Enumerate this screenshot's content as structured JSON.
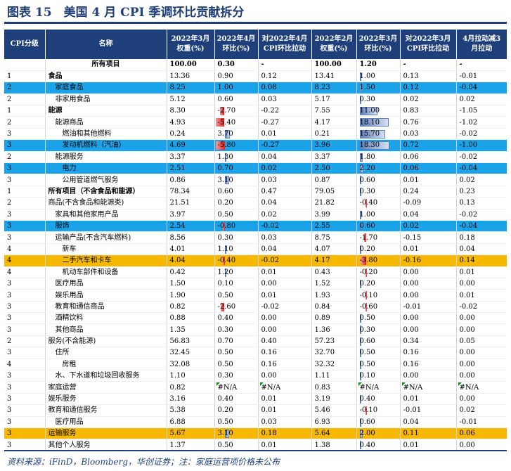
{
  "title": "图表 15　美国 4 月 CPI 季调环比贡献拆分",
  "colors": {
    "header_bg": "#1f3f7a",
    "highlight_blue": "#1aa3e8",
    "highlight_orange": "#f6b800",
    "negative_bar": "#e82020",
    "positive_bar": "#5f7fb8"
  },
  "headers": {
    "c0": "CPI分级",
    "c1": "名称",
    "c2a": "2022年3月",
    "c2b": "权重(%)",
    "c3a": "2022年4月",
    "c3b": "环比(%)",
    "c4a": "对2022年4月",
    "c4b": "CPI环比拉动",
    "c5a": "2022年2月",
    "c5b": "权重(%)",
    "c6a": "2022年3月",
    "c6b": "环比(%)",
    "c7a": "对2022年3月",
    "c7b": "CPI环比拉动",
    "c8a": "4月拉动减3",
    "c8b": "月拉动"
  },
  "rows": [
    {
      "lvl": "",
      "name": "所有项目",
      "w3": "100.00",
      "apr": "0.30",
      "capr": "-",
      "w2": "100.00",
      "mar": "1.20",
      "cmar": "-",
      "diff": "-",
      "style": "total"
    },
    {
      "lvl": "1",
      "name": "食品",
      "w3": "13.36",
      "apr": "0.90",
      "capr": "0.12",
      "w2": "13.41",
      "mar": "1.00",
      "cmar": "0.13",
      "diff": "-0.01",
      "style": "bold"
    },
    {
      "lvl": "2",
      "name": "家庭食品",
      "w3": "8.25",
      "apr": "1.00",
      "capr": "0.08",
      "w2": "8.23",
      "mar": "1.50",
      "cmar": "0.12",
      "diff": "-0.04",
      "style": "blue"
    },
    {
      "lvl": "2",
      "name": "非家用食品",
      "w3": "5.12",
      "apr": "0.60",
      "capr": "0.03",
      "w2": "5.17",
      "mar": "0.30",
      "cmar": "0.02",
      "diff": "0.02",
      "style": ""
    },
    {
      "lvl": "1",
      "name": "能源",
      "w3": "8.30",
      "apr": "-2.70",
      "capr": "-0.22",
      "w2": "7.55",
      "mar": "11.00",
      "cmar": "0.83",
      "diff": "-1.05",
      "style": "bold"
    },
    {
      "lvl": "2",
      "name": "能源商品",
      "w3": "4.93",
      "apr": "-5.40",
      "capr": "-0.27",
      "w2": "4.17",
      "mar": "18.10",
      "cmar": "0.76",
      "diff": "-1.02",
      "style": ""
    },
    {
      "lvl": "3",
      "name": "燃油和其他燃料",
      "w3": "0.24",
      "apr": "3.70",
      "capr": "0.01",
      "w2": "0.21",
      "mar": "15.70",
      "cmar": "0.03",
      "diff": "-0.02",
      "style": ""
    },
    {
      "lvl": "3",
      "name": "发动机燃料（汽油）",
      "w3": "4.69",
      "apr": "-5.80",
      "capr": "-0.27",
      "w2": "3.96",
      "mar": "18.30",
      "cmar": "0.72",
      "diff": "-1.00",
      "style": "blue"
    },
    {
      "lvl": "2",
      "name": "能源服务",
      "w3": "3.37",
      "apr": "1.30",
      "capr": "0.04",
      "w2": "3.37",
      "mar": "1.80",
      "cmar": "0.06",
      "diff": "-0.02",
      "style": ""
    },
    {
      "lvl": "3",
      "name": "电力",
      "w3": "2.51",
      "apr": "0.70",
      "capr": "0.02",
      "w2": "2.50",
      "mar": "2.20",
      "cmar": "0.06",
      "diff": "-0.04",
      "style": "blue"
    },
    {
      "lvl": "3",
      "name": "公用管道燃气服务",
      "w3": "0.86",
      "apr": "3.10",
      "capr": "0.03",
      "w2": "0.87",
      "mar": "0.60",
      "cmar": "0.01",
      "diff": "0.02",
      "style": ""
    },
    {
      "lvl": "1",
      "name": "所有项目（不含食品和能源）",
      "w3": "78.34",
      "apr": "0.60",
      "capr": "0.47",
      "w2": "79.05",
      "mar": "0.30",
      "cmar": "0.24",
      "diff": "0.23",
      "style": "bold"
    },
    {
      "lvl": "2",
      "name": "商品(不含食品和能源类)",
      "w3": "21.51",
      "apr": "0.20",
      "capr": "0.04",
      "w2": "21.82",
      "mar": "-0.40",
      "cmar": "-0.09",
      "diff": "0.13",
      "style": ""
    },
    {
      "lvl": "3",
      "name": "家具和其他家用产品",
      "w3": "3.97",
      "apr": "0.50",
      "capr": "0.02",
      "w2": "3.99",
      "mar": "1.00",
      "cmar": "0.04",
      "diff": "-0.02",
      "style": ""
    },
    {
      "lvl": "3",
      "name": "服饰",
      "w3": "2.54",
      "apr": "-0.80",
      "capr": "-0.02",
      "w2": "2.55",
      "mar": "0.60",
      "cmar": "0.02",
      "diff": "-0.04",
      "style": "blue"
    },
    {
      "lvl": "3",
      "name": "运输产品(不含汽车燃料)",
      "w3": "8.56",
      "apr": "0.30",
      "capr": "0.03",
      "w2": "8.75",
      "mar": "-1.70",
      "cmar": "-0.15",
      "diff": "0.18",
      "style": ""
    },
    {
      "lvl": "4",
      "name": "新车",
      "w3": "4.01",
      "apr": "1.10",
      "capr": "0.04",
      "w2": "4.07",
      "mar": "0.20",
      "cmar": "0.01",
      "diff": "0.04",
      "style": ""
    },
    {
      "lvl": "4",
      "name": "二手汽车和卡车",
      "w3": "4.04",
      "apr": "-0.40",
      "capr": "-0.02",
      "w2": "4.17",
      "mar": "-3.80",
      "cmar": "-0.16",
      "diff": "0.14",
      "style": "orange"
    },
    {
      "lvl": "4",
      "name": "机动车部件和设备",
      "w3": "0.42",
      "apr": "1.20",
      "capr": "0.01",
      "w2": "0.43",
      "mar": "-0.20",
      "cmar": "0.00",
      "diff": "0.01",
      "style": ""
    },
    {
      "lvl": "3",
      "name": "医疗用品",
      "w3": "1.50",
      "apr": "0.10",
      "capr": "0.00",
      "w2": "1.52",
      "mar": "0.20",
      "cmar": "0.00",
      "diff": "0.00",
      "style": ""
    },
    {
      "lvl": "3",
      "name": "娱乐用品",
      "w3": "1.90",
      "apr": "0.50",
      "capr": "0.01",
      "w2": "1.93",
      "mar": "-0.10",
      "cmar": "0.00",
      "diff": "0.01",
      "style": ""
    },
    {
      "lvl": "3",
      "name": "教育和通信商品",
      "w3": "0.82",
      "apr": "-2.60",
      "capr": "-0.02",
      "w2": "0.84",
      "mar": "-0.60",
      "cmar": "-0.01",
      "diff": "-0.02",
      "style": ""
    },
    {
      "lvl": "3",
      "name": "酒精饮料",
      "w3": "0.88",
      "apr": "0.40",
      "capr": "0.00",
      "w2": "0.89",
      "mar": "0.50",
      "cmar": "0.00",
      "diff": "0.00",
      "style": ""
    },
    {
      "lvl": "3",
      "name": "其他商品",
      "w3": "1.35",
      "apr": "0.30",
      "capr": "0.00",
      "w2": "1.36",
      "mar": "0.30",
      "cmar": "0.00",
      "diff": "0.00",
      "style": ""
    },
    {
      "lvl": "2",
      "name": "服务(不含能源)",
      "w3": "56.83",
      "apr": "0.70",
      "capr": "0.40",
      "w2": "57.23",
      "mar": "0.60",
      "cmar": "0.34",
      "diff": "0.05",
      "style": ""
    },
    {
      "lvl": "3",
      "name": "住所",
      "w3": "32.45",
      "apr": "0.50",
      "capr": "0.16",
      "w2": "32.70",
      "mar": "0.50",
      "cmar": "0.16",
      "diff": "0.00",
      "style": ""
    },
    {
      "lvl": "4",
      "name": "房租",
      "w3": "32.08",
      "apr": "0.50",
      "capr": "0.16",
      "w2": "32.32",
      "mar": "0.50",
      "cmar": "0.16",
      "diff": "0.00",
      "style": ""
    },
    {
      "lvl": "3",
      "name": "水、下水道和垃圾回收服务",
      "w3": "1.10",
      "apr": "0.30",
      "capr": "0.00",
      "w2": "1.11",
      "mar": "0.10",
      "cmar": "0.00",
      "diff": "0.00",
      "style": ""
    },
    {
      "lvl": "3",
      "name": "家庭运营",
      "w3": "0.82",
      "apr": "#N/A",
      "capr": "#N/A",
      "w2": "0.83",
      "mar": "#N/A",
      "cmar": "#N/A",
      "diff": "#N/A",
      "style": ""
    },
    {
      "lvl": "3",
      "name": "娱乐服务",
      "w3": "3.16",
      "apr": "0.40",
      "capr": "0.01",
      "w2": "3.19",
      "mar": "0.40",
      "cmar": "0.01",
      "diff": "0.00",
      "style": ""
    },
    {
      "lvl": "3",
      "name": "教育和通信服务",
      "w3": "5.38",
      "apr": "0.20",
      "capr": "0.01",
      "w2": "5.46",
      "mar": "-0.10",
      "cmar": "-0.01",
      "diff": "0.02",
      "style": ""
    },
    {
      "lvl": "3",
      "name": "医疗用品",
      "w3": "6.88",
      "apr": "0.50",
      "capr": "0.03",
      "w2": "6.93",
      "mar": "0.60",
      "cmar": "0.04",
      "diff": "-0.01",
      "style": ""
    },
    {
      "lvl": "3",
      "name": "运输服务",
      "w3": "5.67",
      "apr": "3.10",
      "capr": "0.18",
      "w2": "5.64",
      "mar": "2.00",
      "cmar": "0.11",
      "diff": "0.06",
      "style": "orange"
    },
    {
      "lvl": "3",
      "name": "其他个人服务",
      "w3": "1.37",
      "apr": "0.50",
      "capr": "0.01",
      "w2": "1.38",
      "mar": "0.40",
      "cmar": "0.01",
      "diff": "0.00",
      "style": ""
    }
  ],
  "footer": "资料来源：iFinD，Bloomberg，华创证券；注：家庭运营项价格未公布"
}
